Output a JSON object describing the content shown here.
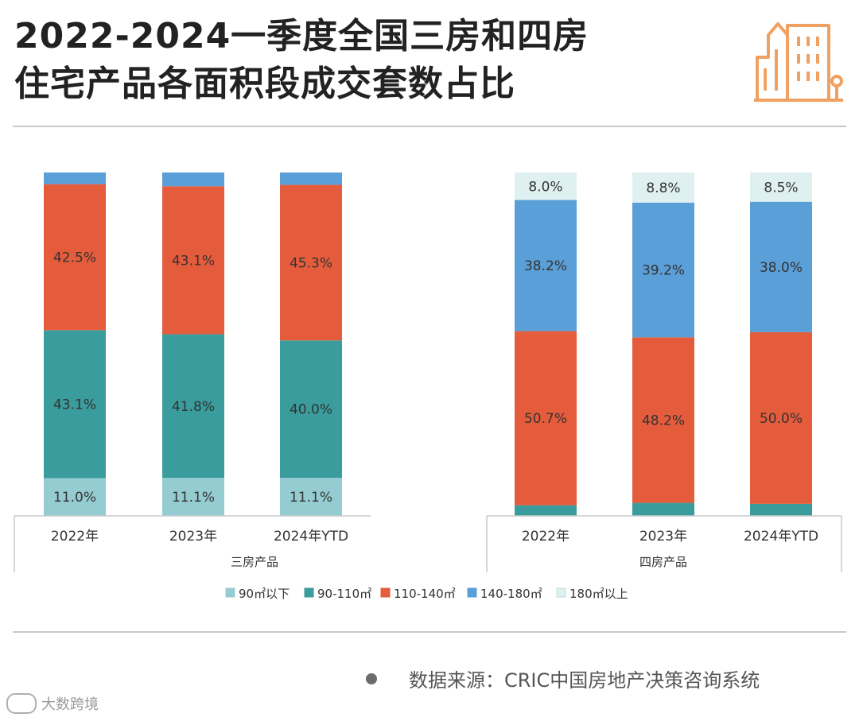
{
  "header": {
    "title_line1": "2022-2024一季度全国三房和四房",
    "title_line2": "住宅产品各面积段成交套数占比",
    "icon": "buildings-icon",
    "accent_color": "#f0a060"
  },
  "chart_data": {
    "type": "bar",
    "stacked": true,
    "percent": true,
    "legend_position": "bottom",
    "legend": [
      {
        "name": "90㎡以下",
        "color": "#95ccd2"
      },
      {
        "name": "90-110㎡",
        "color": "#3a9c9c"
      },
      {
        "name": "110-140㎡",
        "color": "#e55c3c"
      },
      {
        "name": "140-180㎡",
        "color": "#5b9fd8"
      },
      {
        "name": "180㎡以上",
        "color": "#dff0f0"
      }
    ],
    "groups": [
      {
        "name": "三房产品",
        "categories": [
          "2022年",
          "2023年",
          "2024年YTD"
        ],
        "series": [
          {
            "name": "90㎡以下",
            "values": [
              11.0,
              11.1,
              11.1
            ],
            "labels": [
              "11.0%",
              "11.1%",
              "11.1%"
            ]
          },
          {
            "name": "90-110㎡",
            "values": [
              43.1,
              41.8,
              40.0
            ],
            "labels": [
              "43.1%",
              "41.8%",
              "40.0%"
            ]
          },
          {
            "name": "110-140㎡",
            "values": [
              42.5,
              43.1,
              45.3
            ],
            "labels": [
              "42.5%",
              "43.1%",
              "45.3%"
            ]
          },
          {
            "name": "140-180㎡",
            "values": [
              3.4,
              4.0,
              3.6
            ],
            "labels": [
              "",
              "",
              ""
            ]
          }
        ]
      },
      {
        "name": "四房产品",
        "categories": [
          "2022年",
          "2023年",
          "2024年YTD"
        ],
        "series": [
          {
            "name": "90-110㎡",
            "values": [
              3.1,
              3.8,
              3.5
            ],
            "labels": [
              "",
              "",
              ""
            ]
          },
          {
            "name": "110-140㎡",
            "values": [
              50.7,
              48.2,
              50.0
            ],
            "labels": [
              "50.7%",
              "48.2%",
              "50.0%"
            ]
          },
          {
            "name": "140-180㎡",
            "values": [
              38.2,
              39.2,
              38.0
            ],
            "labels": [
              "38.2%",
              "39.2%",
              "38.0%"
            ]
          },
          {
            "name": "180㎡以上",
            "values": [
              8.0,
              8.8,
              8.5
            ],
            "labels": [
              "8.0%",
              "8.8%",
              "8.5%"
            ]
          }
        ]
      }
    ]
  },
  "footer": {
    "source_text": "数据来源：CRIC中国房地产决策咨询系统",
    "watermark_text": "大数跨境"
  }
}
